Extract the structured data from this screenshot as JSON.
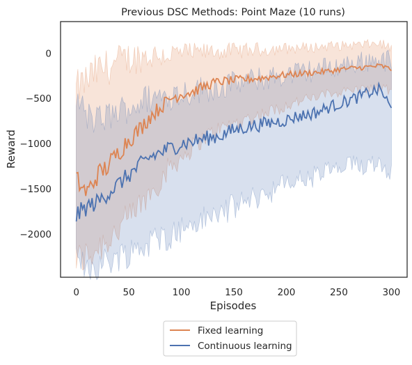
{
  "chart_data": {
    "type": "line",
    "title": "Previous DSC Methods: Point Maze (10 runs)",
    "xlabel": "Episodes",
    "ylabel": "Reward",
    "xlim": [
      -15,
      315
    ],
    "ylim": [
      -2480,
      350
    ],
    "xticks": [
      0,
      50,
      100,
      150,
      200,
      250,
      300
    ],
    "yticks": [
      0,
      -500,
      -1000,
      -1500,
      -2000
    ],
    "xtick_labels": [
      "0",
      "50",
      "100",
      "150",
      "200",
      "250",
      "300"
    ],
    "ytick_labels": [
      "0",
      "−500",
      "−1000",
      "−1500",
      "−2000"
    ],
    "grid": false,
    "legend_position": "below the plot, centered",
    "shaded_band": "min-max range across runs",
    "series": [
      {
        "name": "Fixed learning",
        "color": "#dd8452",
        "x": [
          0,
          10,
          20,
          30,
          40,
          50,
          60,
          70,
          80,
          90,
          100,
          110,
          120,
          130,
          140,
          150,
          160,
          170,
          180,
          190,
          200,
          210,
          220,
          230,
          240,
          250,
          260,
          270,
          280,
          290,
          300
        ],
        "mean": [
          -1400,
          -1550,
          -1350,
          -1250,
          -1100,
          -950,
          -850,
          -700,
          -600,
          -500,
          -450,
          -430,
          -380,
          -330,
          -310,
          -300,
          -290,
          -280,
          -270,
          -250,
          -240,
          -230,
          -220,
          -210,
          -200,
          -180,
          -170,
          -160,
          -150,
          -140,
          -180
        ],
        "upper": [
          -400,
          -300,
          -200,
          -150,
          -100,
          -60,
          -40,
          -30,
          -20,
          -10,
          0,
          0,
          10,
          20,
          20,
          30,
          30,
          40,
          40,
          50,
          50,
          60,
          60,
          70,
          80,
          80,
          90,
          90,
          100,
          110,
          50
        ],
        "lower": [
          -2300,
          -2250,
          -2150,
          -2050,
          -1950,
          -1850,
          -1700,
          -1550,
          -1400,
          -1250,
          -1150,
          -1050,
          -950,
          -880,
          -820,
          -780,
          -740,
          -700,
          -660,
          -620,
          -580,
          -540,
          -510,
          -480,
          -450,
          -430,
          -410,
          -400,
          -390,
          -380,
          -420
        ]
      },
      {
        "name": "Continuous learning",
        "color": "#4c72b0",
        "x": [
          0,
          10,
          20,
          30,
          40,
          50,
          60,
          70,
          80,
          90,
          100,
          110,
          120,
          130,
          140,
          150,
          160,
          170,
          180,
          190,
          200,
          210,
          220,
          230,
          240,
          250,
          260,
          270,
          280,
          290,
          300
        ],
        "mean": [
          -1800,
          -1700,
          -1650,
          -1550,
          -1450,
          -1350,
          -1250,
          -1150,
          -1100,
          -1050,
          -1000,
          -980,
          -950,
          -930,
          -900,
          -850,
          -820,
          -800,
          -780,
          -760,
          -740,
          -700,
          -680,
          -650,
          -600,
          -560,
          -520,
          -480,
          -430,
          -400,
          -630
        ],
        "upper": [
          -500,
          -700,
          -750,
          -700,
          -650,
          -600,
          -550,
          -500,
          -480,
          -460,
          -440,
          -420,
          -400,
          -380,
          -360,
          -340,
          -320,
          -300,
          -280,
          -260,
          -240,
          -220,
          -200,
          -180,
          -160,
          -140,
          -120,
          -100,
          -80,
          -60,
          -100
        ],
        "lower": [
          -2350,
          -2350,
          -2350,
          -2300,
          -2250,
          -2200,
          -2150,
          -2100,
          -2050,
          -2000,
          -1950,
          -1900,
          -1850,
          -1800,
          -1750,
          -1700,
          -1650,
          -1600,
          -1550,
          -1500,
          -1450,
          -1400,
          -1400,
          -1350,
          -1300,
          -1300,
          -1250,
          -1250,
          -1200,
          -1200,
          -1300
        ]
      }
    ]
  }
}
